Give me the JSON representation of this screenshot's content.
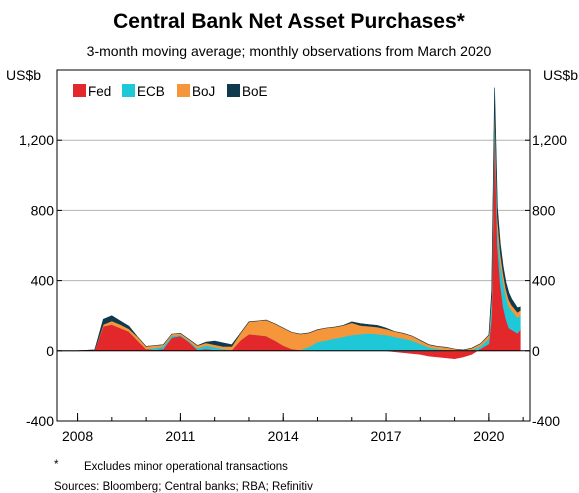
{
  "chart_data": {
    "type": "area",
    "stacked": true,
    "title": "Central Bank Net Asset Purchases*",
    "subtitle": "3-month moving average; monthly observations from March 2020",
    "y_unit_left": "US$b",
    "y_unit_right": "US$b",
    "ylim": [
      -400,
      1600
    ],
    "y_ticks": [
      -400,
      0,
      400,
      800,
      1200
    ],
    "y_tick_labels": [
      "-400",
      "0",
      "400",
      "800",
      "1,200"
    ],
    "xlim": [
      2007.4,
      2021.2
    ],
    "x_ticks": [
      2008,
      2011,
      2014,
      2017,
      2020
    ],
    "x_tick_labels": [
      "2008",
      "2011",
      "2014",
      "2017",
      "2020"
    ],
    "grid": true,
    "legend_position": "top-left",
    "x": [
      2007.5,
      2008.0,
      2008.5,
      2008.75,
      2009.0,
      2009.25,
      2009.5,
      2009.75,
      2010.0,
      2010.25,
      2010.5,
      2010.75,
      2011.0,
      2011.25,
      2011.5,
      2011.75,
      2012.0,
      2012.25,
      2012.5,
      2012.75,
      2013.0,
      2013.25,
      2013.5,
      2013.75,
      2014.0,
      2014.25,
      2014.5,
      2014.75,
      2015.0,
      2015.25,
      2015.5,
      2015.75,
      2016.0,
      2016.25,
      2016.5,
      2016.75,
      2017.0,
      2017.25,
      2017.5,
      2017.75,
      2018.0,
      2018.25,
      2018.5,
      2018.75,
      2019.0,
      2019.25,
      2019.5,
      2019.75,
      2020.0,
      2020.083,
      2020.167,
      2020.25,
      2020.333,
      2020.417,
      2020.5,
      2020.583,
      2020.667,
      2020.75,
      2020.833,
      2020.917
    ],
    "series": [
      {
        "name": "Fed",
        "color": "#e3282c",
        "values": [
          0,
          0,
          5,
          140,
          150,
          130,
          110,
          60,
          10,
          5,
          10,
          75,
          85,
          50,
          5,
          10,
          5,
          5,
          5,
          60,
          95,
          90,
          85,
          60,
          30,
          10,
          5,
          2,
          0,
          0,
          0,
          0,
          0,
          0,
          0,
          0,
          0,
          -5,
          -10,
          -15,
          -20,
          -30,
          -35,
          -40,
          -45,
          -35,
          -20,
          10,
          40,
          200,
          1300,
          600,
          380,
          250,
          180,
          130,
          120,
          110,
          100,
          120
        ]
      },
      {
        "name": "ECB",
        "color": "#1ec8d6",
        "values": [
          0,
          0,
          0,
          0,
          0,
          0,
          0,
          0,
          0,
          10,
          15,
          10,
          5,
          5,
          10,
          20,
          15,
          5,
          0,
          0,
          0,
          0,
          0,
          0,
          0,
          0,
          0,
          20,
          50,
          60,
          70,
          80,
          90,
          95,
          100,
          95,
          90,
          80,
          70,
          60,
          40,
          20,
          10,
          5,
          0,
          0,
          5,
          15,
          30,
          80,
          80,
          100,
          120,
          140,
          130,
          120,
          110,
          100,
          90,
          80
        ]
      },
      {
        "name": "BoJ",
        "color": "#f5963b",
        "values": [
          0,
          0,
          0,
          10,
          20,
          20,
          15,
          20,
          15,
          15,
          10,
          10,
          10,
          10,
          15,
          15,
          15,
          15,
          20,
          40,
          70,
          80,
          90,
          95,
          100,
          95,
          90,
          80,
          70,
          70,
          65,
          65,
          70,
          50,
          40,
          40,
          35,
          30,
          30,
          25,
          20,
          15,
          15,
          15,
          10,
          5,
          10,
          15,
          20,
          30,
          50,
          60,
          60,
          50,
          40,
          40,
          30,
          30,
          30,
          30
        ]
      },
      {
        "name": "BoE",
        "color": "#0f3a4e",
        "values": [
          0,
          0,
          0,
          30,
          30,
          20,
          15,
          0,
          0,
          0,
          0,
          0,
          0,
          0,
          0,
          5,
          20,
          20,
          10,
          0,
          0,
          0,
          0,
          0,
          0,
          0,
          0,
          0,
          0,
          0,
          0,
          0,
          5,
          10,
          10,
          10,
          5,
          0,
          0,
          0,
          0,
          0,
          0,
          0,
          0,
          0,
          0,
          0,
          0,
          30,
          70,
          60,
          50,
          40,
          40,
          40,
          35,
          30,
          25,
          20
        ]
      }
    ],
    "footnote_marker": "*",
    "footnote": "Excludes minor operational transactions",
    "sources": "Sources: Bloomberg; Central banks; RBA; Refinitiv"
  }
}
